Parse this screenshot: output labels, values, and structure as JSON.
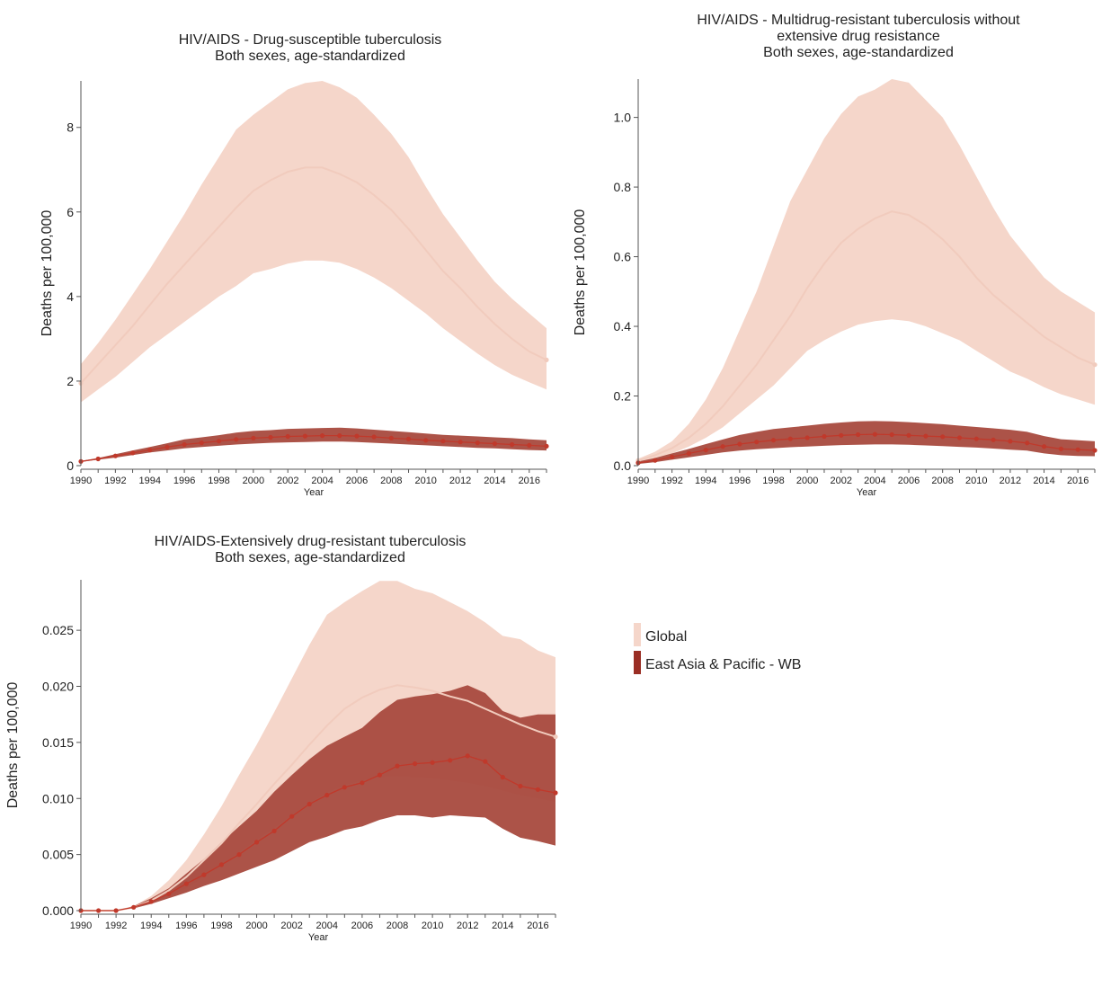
{
  "colors": {
    "global_band": "#f5d6ca",
    "global_line": "#f1cbbd",
    "eap_band": "#a84a3e",
    "eap_line": "#c0392b"
  },
  "legend": {
    "position": "right",
    "items": [
      {
        "label": "Global",
        "color": "#f5d6ca"
      },
      {
        "label": "East Asia & Pacific - WB",
        "color": "#9a2e24"
      }
    ]
  },
  "chart_data": [
    {
      "type": "area",
      "title_lines": [
        "HIV/AIDS - Drug-susceptible tuberculosis",
        "Both sexes, age-standardized"
      ],
      "xlabel": "Year",
      "ylabel": "Deaths per 100,000",
      "ylim": [
        0,
        9.1
      ],
      "yticks": [
        0,
        2,
        4,
        6,
        8
      ],
      "ytick_labels": [
        "0",
        "2",
        "4",
        "6",
        "8"
      ],
      "xlim": [
        1990,
        2017
      ],
      "xticks": [
        1990,
        1992,
        1994,
        1996,
        1998,
        2000,
        2002,
        2004,
        2006,
        2008,
        2010,
        2012,
        2014,
        2016
      ],
      "x": [
        1990,
        1991,
        1992,
        1993,
        1994,
        1995,
        1996,
        1997,
        1998,
        1999,
        2000,
        2001,
        2002,
        2003,
        2004,
        2005,
        2006,
        2007,
        2008,
        2009,
        2010,
        2011,
        2012,
        2013,
        2014,
        2015,
        2016,
        2017
      ],
      "series": [
        {
          "name": "Global",
          "values": [
            1.95,
            2.4,
            2.85,
            3.3,
            3.8,
            4.3,
            4.75,
            5.2,
            5.65,
            6.1,
            6.5,
            6.75,
            6.95,
            7.05,
            7.05,
            6.9,
            6.7,
            6.4,
            6.05,
            5.6,
            5.1,
            4.6,
            4.2,
            3.75,
            3.35,
            3.0,
            2.7,
            2.5
          ],
          "lower": [
            1.5,
            1.8,
            2.1,
            2.45,
            2.8,
            3.1,
            3.4,
            3.7,
            4.0,
            4.25,
            4.55,
            4.65,
            4.78,
            4.85,
            4.85,
            4.8,
            4.65,
            4.45,
            4.2,
            3.9,
            3.6,
            3.25,
            2.95,
            2.65,
            2.38,
            2.15,
            1.97,
            1.8
          ],
          "upper": [
            2.4,
            2.9,
            3.45,
            4.05,
            4.65,
            5.3,
            5.95,
            6.65,
            7.3,
            7.95,
            8.3,
            8.6,
            8.9,
            9.05,
            9.1,
            8.95,
            8.7,
            8.3,
            7.85,
            7.3,
            6.6,
            5.95,
            5.4,
            4.85,
            4.35,
            3.95,
            3.6,
            3.25
          ]
        },
        {
          "name": "East Asia & Pacific - WB",
          "values": [
            0.1,
            0.16,
            0.23,
            0.3,
            0.37,
            0.44,
            0.5,
            0.54,
            0.58,
            0.62,
            0.65,
            0.67,
            0.69,
            0.7,
            0.71,
            0.71,
            0.7,
            0.68,
            0.65,
            0.63,
            0.6,
            0.58,
            0.56,
            0.54,
            0.52,
            0.5,
            0.48,
            0.46
          ],
          "lower": [
            0.09,
            0.14,
            0.19,
            0.25,
            0.31,
            0.36,
            0.41,
            0.44,
            0.47,
            0.5,
            0.52,
            0.54,
            0.55,
            0.56,
            0.57,
            0.57,
            0.56,
            0.54,
            0.52,
            0.5,
            0.48,
            0.46,
            0.44,
            0.42,
            0.41,
            0.39,
            0.37,
            0.36
          ],
          "upper": [
            0.11,
            0.18,
            0.27,
            0.36,
            0.44,
            0.53,
            0.62,
            0.67,
            0.72,
            0.78,
            0.82,
            0.84,
            0.87,
            0.88,
            0.89,
            0.9,
            0.88,
            0.85,
            0.82,
            0.79,
            0.76,
            0.73,
            0.71,
            0.69,
            0.67,
            0.65,
            0.62,
            0.6
          ]
        }
      ]
    },
    {
      "type": "area",
      "title_lines": [
        "HIV/AIDS - Multidrug-resistant tuberculosis without",
        "extensive drug resistance",
        "Both sexes, age-standardized"
      ],
      "xlabel": "Year",
      "ylabel": "Deaths per 100,000",
      "ylim": [
        0,
        1.11
      ],
      "yticks": [
        0,
        0.2,
        0.4,
        0.6,
        0.8,
        1.0
      ],
      "ytick_labels": [
        "0.0",
        "0.2",
        "0.4",
        "0.6",
        "0.8",
        "1.0"
      ],
      "xlim": [
        1990,
        2017
      ],
      "xticks": [
        1990,
        1992,
        1994,
        1996,
        1998,
        2000,
        2002,
        2004,
        2006,
        2008,
        2010,
        2012,
        2014,
        2016
      ],
      "x": [
        1990,
        1991,
        1992,
        1993,
        1994,
        1995,
        1996,
        1997,
        1998,
        1999,
        2000,
        2001,
        2002,
        2003,
        2004,
        2005,
        2006,
        2007,
        2008,
        2009,
        2010,
        2011,
        2012,
        2013,
        2014,
        2015,
        2016,
        2017
      ],
      "series": [
        {
          "name": "Global",
          "values": [
            0.015,
            0.03,
            0.05,
            0.08,
            0.12,
            0.17,
            0.23,
            0.29,
            0.36,
            0.43,
            0.51,
            0.58,
            0.64,
            0.68,
            0.71,
            0.73,
            0.72,
            0.69,
            0.65,
            0.6,
            0.54,
            0.49,
            0.45,
            0.41,
            0.37,
            0.34,
            0.31,
            0.29
          ],
          "lower": [
            0.01,
            0.02,
            0.035,
            0.055,
            0.08,
            0.11,
            0.15,
            0.19,
            0.23,
            0.28,
            0.33,
            0.36,
            0.385,
            0.405,
            0.415,
            0.42,
            0.415,
            0.4,
            0.38,
            0.36,
            0.33,
            0.3,
            0.27,
            0.25,
            0.225,
            0.205,
            0.19,
            0.175
          ],
          "upper": [
            0.02,
            0.04,
            0.07,
            0.12,
            0.19,
            0.28,
            0.39,
            0.5,
            0.63,
            0.76,
            0.85,
            0.94,
            1.01,
            1.06,
            1.08,
            1.11,
            1.1,
            1.05,
            1.0,
            0.92,
            0.83,
            0.74,
            0.66,
            0.6,
            0.54,
            0.5,
            0.47,
            0.44
          ]
        },
        {
          "name": "East Asia & Pacific - WB",
          "values": [
            0.008,
            0.015,
            0.025,
            0.035,
            0.045,
            0.055,
            0.062,
            0.068,
            0.073,
            0.077,
            0.08,
            0.084,
            0.087,
            0.089,
            0.09,
            0.089,
            0.087,
            0.085,
            0.083,
            0.08,
            0.077,
            0.074,
            0.07,
            0.065,
            0.055,
            0.048,
            0.046,
            0.044
          ],
          "lower": [
            0.005,
            0.01,
            0.017,
            0.024,
            0.031,
            0.038,
            0.043,
            0.047,
            0.05,
            0.053,
            0.055,
            0.057,
            0.059,
            0.06,
            0.061,
            0.061,
            0.06,
            0.058,
            0.056,
            0.054,
            0.052,
            0.049,
            0.046,
            0.043,
            0.035,
            0.03,
            0.028,
            0.027
          ],
          "upper": [
            0.012,
            0.022,
            0.035,
            0.048,
            0.062,
            0.075,
            0.088,
            0.097,
            0.105,
            0.11,
            0.115,
            0.12,
            0.124,
            0.127,
            0.128,
            0.127,
            0.125,
            0.122,
            0.119,
            0.115,
            0.111,
            0.107,
            0.103,
            0.097,
            0.085,
            0.076,
            0.073,
            0.07
          ]
        }
      ]
    },
    {
      "type": "area",
      "title_lines": [
        "HIV/AIDS-Extensively drug-resistant tuberculosis",
        "Both sexes, age-standardized"
      ],
      "xlabel": "Year",
      "ylabel": "Deaths per 100,000",
      "ylim": [
        0,
        0.0295
      ],
      "yticks": [
        0,
        0.005,
        0.01,
        0.015,
        0.02,
        0.025
      ],
      "ytick_labels": [
        "0.000",
        "0.005",
        "0.010",
        "0.015",
        "0.020",
        "0.025"
      ],
      "xlim": [
        1990,
        2017
      ],
      "xticks": [
        1990,
        1992,
        1994,
        1996,
        1998,
        2000,
        2002,
        2004,
        2006,
        2008,
        2010,
        2012,
        2014,
        2016
      ],
      "x": [
        1990,
        1991,
        1992,
        1993,
        1994,
        1995,
        1996,
        1997,
        1998,
        1999,
        2000,
        2001,
        2002,
        2003,
        2004,
        2005,
        2006,
        2007,
        2008,
        2009,
        2010,
        2011,
        2012,
        2013,
        2014,
        2015,
        2016,
        2017
      ],
      "series": [
        {
          "name": "Global",
          "values": [
            0,
            0,
            0,
            0.0003,
            0.0009,
            0.0018,
            0.003,
            0.0045,
            0.006,
            0.0078,
            0.0095,
            0.0113,
            0.013,
            0.0148,
            0.0165,
            0.018,
            0.019,
            0.0197,
            0.0201,
            0.0199,
            0.0196,
            0.0191,
            0.0187,
            0.018,
            0.0173,
            0.0166,
            0.016,
            0.0155
          ],
          "lower": [
            0,
            0,
            0,
            0.0002,
            0.0006,
            0.0013,
            0.002,
            0.003,
            0.0041,
            0.0052,
            0.0063,
            0.0074,
            0.0085,
            0.0096,
            0.0105,
            0.0112,
            0.0116,
            0.0119,
            0.012,
            0.0119,
            0.0118,
            0.0116,
            0.0114,
            0.0111,
            0.0107,
            0.0103,
            0.01,
            0.0097
          ],
          "upper": [
            0,
            0,
            0,
            0.0004,
            0.0013,
            0.0027,
            0.0045,
            0.0068,
            0.0093,
            0.0121,
            0.0148,
            0.0177,
            0.0207,
            0.0237,
            0.0264,
            0.0275,
            0.0285,
            0.0294,
            0.0294,
            0.0287,
            0.0283,
            0.0275,
            0.0267,
            0.0257,
            0.0245,
            0.0242,
            0.0232,
            0.0226
          ]
        },
        {
          "name": "East Asia & Pacific - WB",
          "values": [
            0,
            0,
            0,
            0.0003,
            0.0008,
            0.0015,
            0.0024,
            0.0032,
            0.0041,
            0.005,
            0.0061,
            0.0071,
            0.0084,
            0.0095,
            0.0103,
            0.011,
            0.0114,
            0.0121,
            0.0129,
            0.0131,
            0.0132,
            0.0134,
            0.0138,
            0.0133,
            0.0119,
            0.0111,
            0.0108,
            0.0105
          ],
          "lower": [
            0,
            0,
            0,
            0.0002,
            0.0006,
            0.0011,
            0.0016,
            0.0022,
            0.0027,
            0.0033,
            0.0039,
            0.0045,
            0.0053,
            0.0061,
            0.0066,
            0.0072,
            0.0075,
            0.0081,
            0.0085,
            0.0085,
            0.0083,
            0.0085,
            0.0084,
            0.0083,
            0.0073,
            0.0065,
            0.0062,
            0.0058
          ],
          "upper": [
            0,
            0,
            0,
            0.0004,
            0.0011,
            0.002,
            0.0033,
            0.0046,
            0.0061,
            0.0075,
            0.0089,
            0.0106,
            0.0121,
            0.0135,
            0.0147,
            0.0155,
            0.0163,
            0.0177,
            0.0188,
            0.0191,
            0.0193,
            0.0196,
            0.0201,
            0.0194,
            0.0178,
            0.0172,
            0.0175,
            0.0175
          ]
        }
      ]
    }
  ]
}
